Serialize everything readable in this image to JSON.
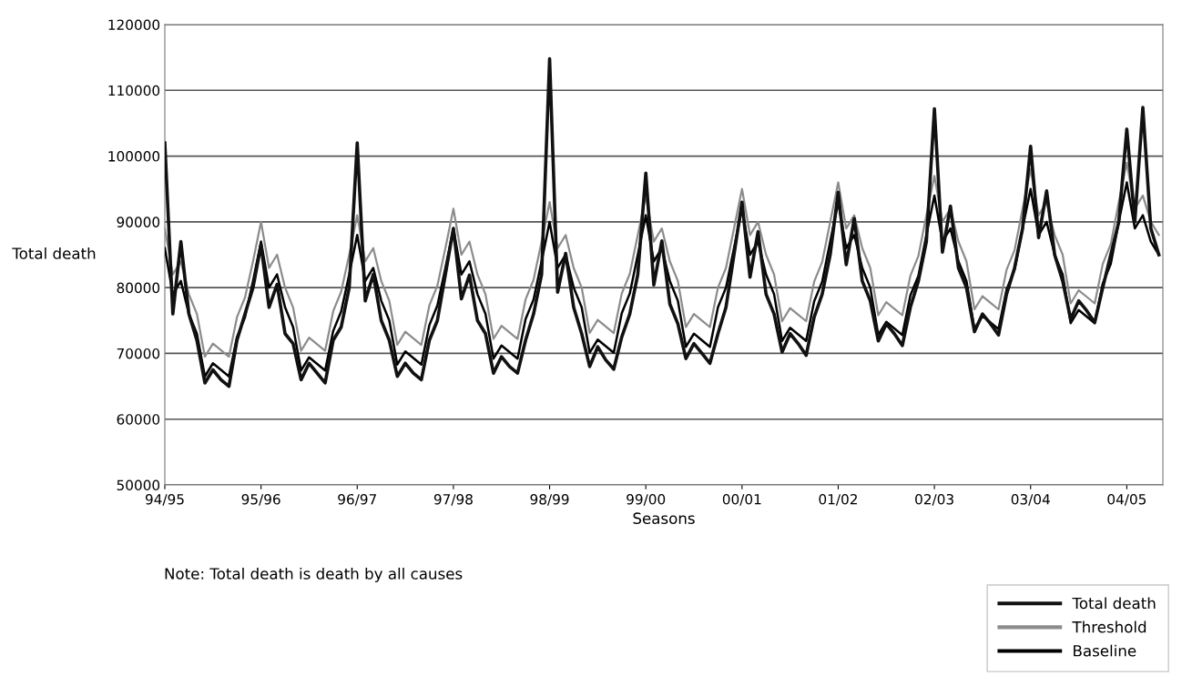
{
  "chart_data": {
    "type": "line",
    "xlabel": "Seasons",
    "ylabel": "Total death",
    "annotations": [
      "Note: Total death is death by all causes"
    ],
    "categories": [
      "94/95",
      null,
      null,
      null,
      null,
      null,
      null,
      null,
      null,
      null,
      null,
      null,
      "95/96",
      null,
      null,
      null,
      null,
      null,
      null,
      null,
      null,
      null,
      null,
      null,
      "96/97",
      null,
      null,
      null,
      null,
      null,
      null,
      null,
      null,
      null,
      null,
      null,
      "97/98",
      null,
      null,
      null,
      null,
      null,
      null,
      null,
      null,
      null,
      null,
      null,
      "98/99",
      null,
      null,
      null,
      null,
      null,
      null,
      null,
      null,
      null,
      null,
      null,
      "99/00",
      null,
      null,
      null,
      null,
      null,
      null,
      null,
      null,
      null,
      null,
      null,
      "00/01",
      null,
      null,
      null,
      null,
      null,
      null,
      null,
      null,
      null,
      null,
      null,
      "01/02",
      null,
      null,
      null,
      null,
      null,
      null,
      null,
      null,
      null,
      null,
      null,
      "02/03",
      null,
      null,
      null,
      null,
      null,
      null,
      null,
      null,
      null,
      null,
      null,
      "03/04",
      null,
      null,
      null,
      null,
      null,
      null,
      null,
      null,
      null,
      null,
      null,
      "04/05",
      null,
      null,
      null,
      null
    ],
    "ylim": [
      50000,
      120000
    ],
    "yticks": [
      50000,
      60000,
      70000,
      80000,
      90000,
      100000,
      110000,
      120000
    ],
    "grid": "y",
    "legend": "bottom right",
    "marker": "none",
    "line_style": "solid",
    "series": [
      {
        "name": "Total death",
        "color": "#111111",
        "values": [
          102000,
          76000,
          87000,
          76000,
          72000,
          65500,
          67500,
          66000,
          65000,
          72000,
          76000,
          80000,
          86500,
          77000,
          80500,
          73000,
          71500,
          66000,
          68500,
          67000,
          65500,
          72000,
          74000,
          80000,
          102000,
          78000,
          82000,
          75000,
          72000,
          66500,
          68500,
          67000,
          66000,
          72000,
          75000,
          82000,
          89000,
          78300,
          81900,
          75000,
          73000,
          67000,
          69500,
          68000,
          67000,
          72000,
          76000,
          82000,
          114800,
          79300,
          85200,
          77000,
          73000,
          68000,
          71000,
          69000,
          67600,
          72500,
          76000,
          82000,
          97400,
          80400,
          87100,
          77500,
          74500,
          69200,
          71500,
          70000,
          68500,
          73000,
          77000,
          85000,
          93000,
          81600,
          88500,
          79000,
          76000,
          70200,
          73000,
          71500,
          69700,
          75500,
          79000,
          85000,
          94500,
          83500,
          90500,
          81000,
          78000,
          71900,
          74500,
          73000,
          71200,
          77000,
          81000,
          87000,
          107200,
          85400,
          92400,
          83000,
          80000,
          73300,
          76000,
          74500,
          72800,
          79000,
          83000,
          89000,
          101500,
          87600,
          94700,
          85000,
          81000,
          75200,
          78000,
          76500,
          74700,
          80000,
          85000,
          90000,
          104100,
          90000,
          107400,
          89000,
          85000
        ]
      },
      {
        "name": "Threshold",
        "color": "#8c8c8c",
        "values": [
          89000,
          82000,
          84000,
          79000,
          76000,
          69500,
          71500,
          70500,
          69500,
          75500,
          78500,
          84000,
          90000,
          83000,
          85000,
          80000,
          77000,
          70400,
          72400,
          71400,
          70400,
          76400,
          79400,
          85000,
          91000,
          84000,
          86000,
          81000,
          78000,
          71300,
          73300,
          72300,
          71300,
          77300,
          80300,
          86000,
          92000,
          85000,
          87000,
          82000,
          79000,
          72200,
          74200,
          73200,
          72200,
          78200,
          81200,
          87000,
          93000,
          86000,
          88000,
          83000,
          80000,
          73100,
          75100,
          74100,
          73100,
          79100,
          82100,
          88000,
          94000,
          87000,
          89000,
          84000,
          81000,
          74000,
          76000,
          75000,
          74000,
          80000,
          83000,
          89000,
          95000,
          88000,
          90000,
          85000,
          82000,
          74900,
          76900,
          75900,
          74900,
          80900,
          83900,
          90000,
          96000,
          89000,
          91000,
          86000,
          83000,
          75800,
          77800,
          76800,
          75800,
          81800,
          84800,
          91000,
          97000,
          90000,
          92000,
          87000,
          84000,
          76700,
          78700,
          77700,
          76700,
          82700,
          85700,
          92000,
          98000,
          91000,
          93000,
          88000,
          85000,
          77600,
          79600,
          78600,
          77600,
          83600,
          86600,
          93000,
          99000,
          92000,
          94000,
          90000,
          88000
        ]
      },
      {
        "name": "Baseline",
        "color": "#000000",
        "values": [
          86000,
          79000,
          81000,
          76000,
          73000,
          66500,
          68500,
          67500,
          66500,
          72500,
          75500,
          81000,
          87000,
          80000,
          82000,
          77000,
          74000,
          67400,
          69400,
          68400,
          67400,
          73400,
          76400,
          82000,
          88000,
          81000,
          83000,
          78000,
          75000,
          68300,
          70300,
          69300,
          68300,
          74300,
          77300,
          83000,
          89000,
          82000,
          84000,
          79000,
          76000,
          69200,
          71200,
          70200,
          69200,
          75200,
          78200,
          84000,
          90000,
          83000,
          85000,
          80000,
          77000,
          70100,
          72100,
          71100,
          70100,
          76100,
          79100,
          85000,
          91000,
          84000,
          86000,
          81000,
          78000,
          71000,
          73000,
          72000,
          71000,
          77000,
          80000,
          86000,
          92000,
          85000,
          87000,
          82000,
          79000,
          71900,
          73900,
          72900,
          71900,
          77900,
          80900,
          87000,
          93000,
          86000,
          88000,
          83000,
          80000,
          72800,
          74800,
          73800,
          72800,
          78800,
          81800,
          88000,
          94000,
          87000,
          89000,
          84000,
          81000,
          73700,
          75700,
          74700,
          73700,
          79700,
          82700,
          89000,
          95000,
          88000,
          90000,
          85000,
          82000,
          74600,
          76600,
          75600,
          74600,
          80600,
          83600,
          90000,
          96000,
          89000,
          91000,
          87000,
          85000
        ]
      }
    ]
  }
}
